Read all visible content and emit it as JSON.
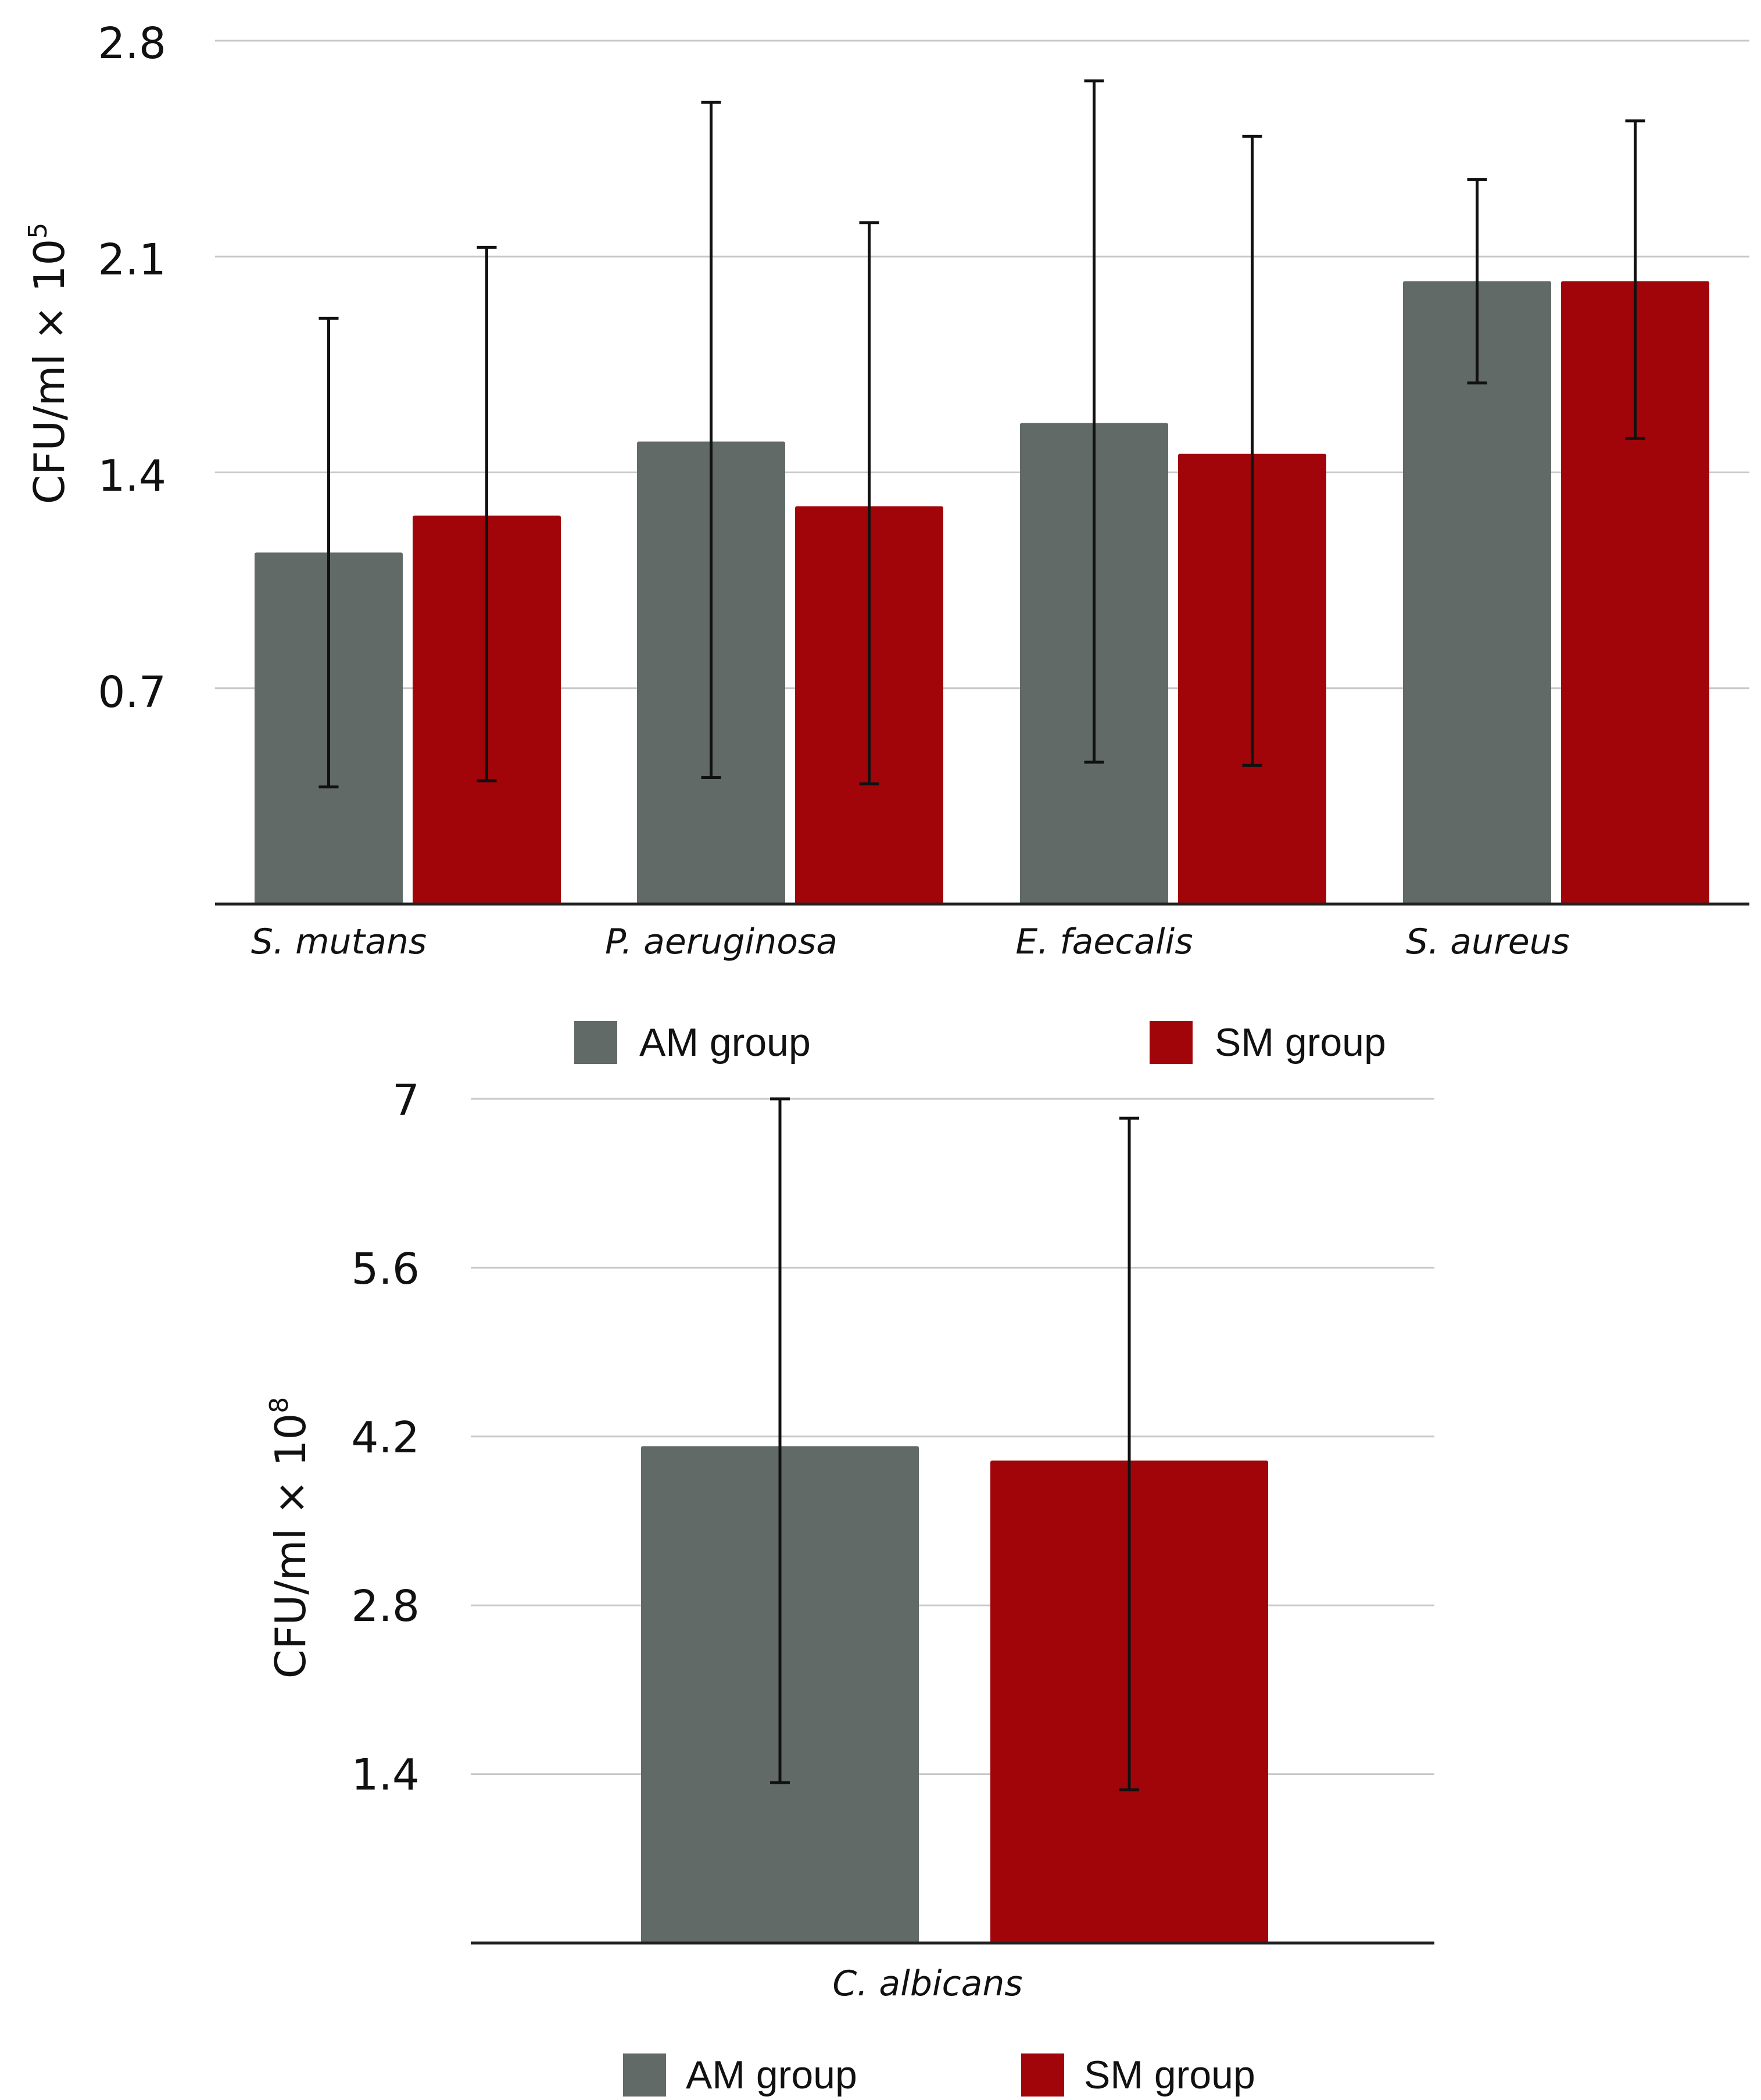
{
  "colors": {
    "am": "#626a67",
    "sm": "#a10509",
    "grid": "#c8c8c8",
    "axis": "#222222",
    "errorbar": "#111111",
    "text": "#111111"
  },
  "chart_data": [
    {
      "type": "bar",
      "categories": [
        "S. mutans",
        "P. aeruginosa",
        "E. faecalis",
        "S. aureus"
      ],
      "series": [
        {
          "name": "AM group",
          "values": [
            1.14,
            1.5,
            1.56,
            2.02
          ],
          "error_low": [
            0.38,
            0.41,
            0.46,
            1.69
          ],
          "error_high": [
            1.9,
            2.6,
            2.67,
            2.35
          ]
        },
        {
          "name": "SM group",
          "values": [
            1.26,
            1.29,
            1.46,
            2.02
          ],
          "error_low": [
            0.4,
            0.39,
            0.45,
            1.51
          ],
          "error_high": [
            2.13,
            2.21,
            2.49,
            2.54
          ]
        }
      ],
      "ylim": [
        0,
        2.8
      ],
      "yticks": [
        "0.7",
        "1.4",
        "2.1",
        "2.8"
      ],
      "ylabel": "CFU/ml × 10",
      "ylabel_exp": "5",
      "legend": [
        "AM group",
        "SM group"
      ],
      "legend_position": "bottom",
      "grid": true
    },
    {
      "type": "bar",
      "categories": [
        "C. albicans"
      ],
      "series": [
        {
          "name": "AM group",
          "values": [
            4.12
          ],
          "error_low": [
            1.33
          ],
          "error_high": [
            7.0
          ]
        },
        {
          "name": "SM group",
          "values": [
            4.0
          ],
          "error_low": [
            1.27
          ],
          "error_high": [
            6.84
          ]
        }
      ],
      "ylim": [
        0,
        7
      ],
      "yticks": [
        "1.4",
        "2.8",
        "4.2",
        "5.6",
        "7"
      ],
      "ylabel": "CFU/ml × 10",
      "ylabel_exp": "8",
      "legend": [
        "AM group",
        "SM group"
      ],
      "legend_position": "bottom",
      "grid": true
    }
  ]
}
